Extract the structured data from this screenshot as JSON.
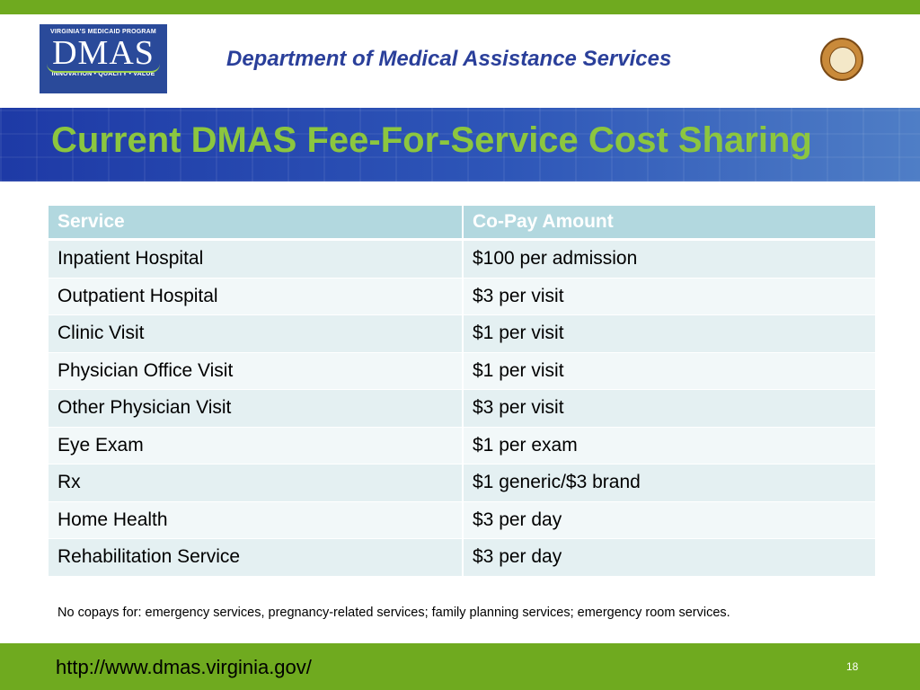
{
  "header": {
    "logo": {
      "top_text": "VIRGINIA'S MEDICAID PROGRAM",
      "main_text": "DMAS",
      "bottom_text": "INNOVATION • QUALITY • VALUE"
    },
    "department": "Department of Medical Assistance Services",
    "seal_icon": "virginia-seal-icon"
  },
  "slide": {
    "title": "Current DMAS Fee-For-Service Cost Sharing"
  },
  "table": {
    "headers": [
      "Service",
      "Co-Pay Amount"
    ],
    "rows": [
      [
        "Inpatient Hospital",
        "$100 per admission"
      ],
      [
        "Outpatient Hospital",
        "$3 per visit"
      ],
      [
        "Clinic Visit",
        "$1 per visit"
      ],
      [
        "Physician Office Visit",
        "$1 per visit"
      ],
      [
        "Other Physician Visit",
        "$3 per visit"
      ],
      [
        "Eye Exam",
        "$1 per exam"
      ],
      [
        "Rx",
        "$1 generic/$3 brand"
      ],
      [
        "Home Health",
        "$3 per day"
      ],
      [
        "Rehabilitation Service",
        "$3 per day"
      ]
    ]
  },
  "note": "No copays for: emergency services, pregnancy-related services; family planning services; emergency room services.",
  "footer": {
    "url": "http://www.dmas.virginia.gov/",
    "page_number": "18"
  },
  "colors": {
    "accent_green": "#6faa1f",
    "title_green": "#8cc63f",
    "navy": "#2a3f9a",
    "table_header": "#b2d8df"
  }
}
